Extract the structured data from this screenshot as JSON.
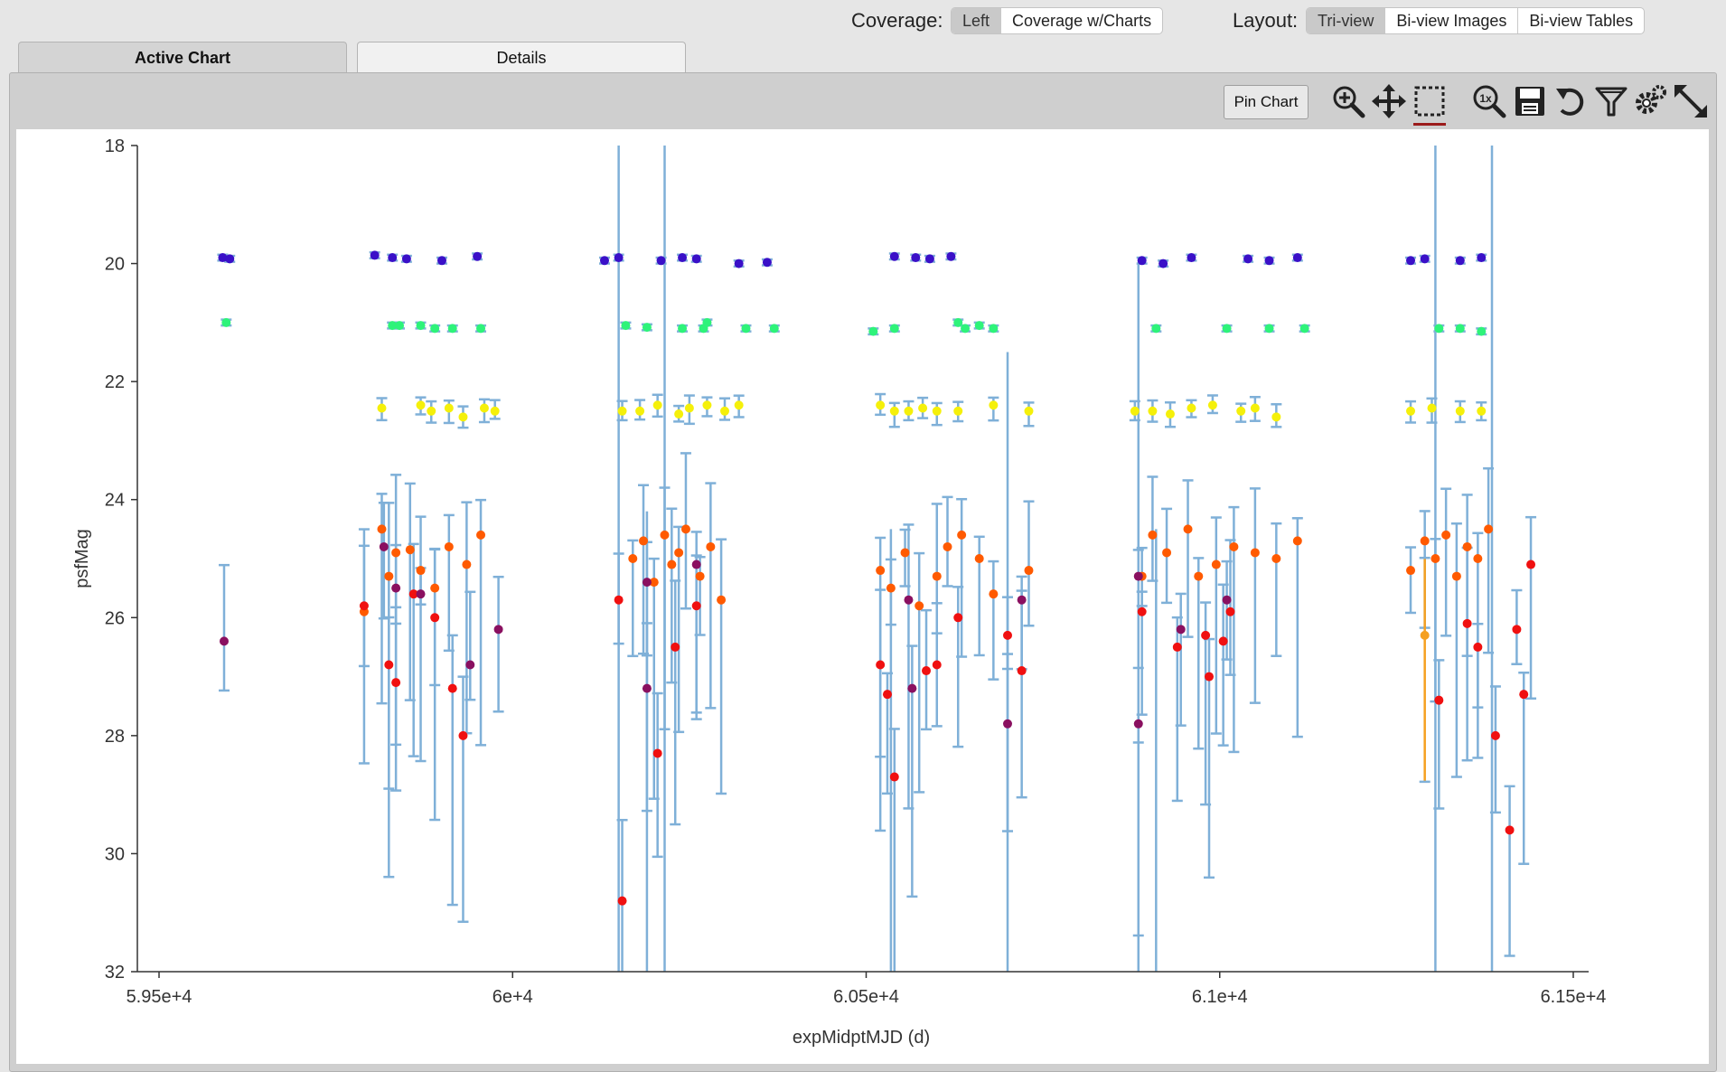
{
  "toolbar": {
    "coverage_label": "Coverage:",
    "coverage_options": [
      "Left",
      "Coverage w/Charts"
    ],
    "coverage_selected": "Left",
    "layout_label": "Layout:",
    "layout_options": [
      "Tri-view",
      "Bi-view Images",
      "Bi-view Tables"
    ],
    "layout_selected": "Tri-view"
  },
  "tabs": [
    {
      "label": "Active Chart",
      "active": true
    },
    {
      "label": "Details",
      "active": false
    }
  ],
  "chart_toolbar": {
    "pin_label": "Pin Chart",
    "icons": [
      "zoom-in-icon",
      "pan-icon",
      "select-box-icon",
      "zoom-reset-icon",
      "save-icon",
      "restore-icon",
      "filter-icon",
      "settings-icon",
      "expand-icon"
    ],
    "selected_icon": "select-box-icon"
  },
  "chart_data": {
    "type": "scatter",
    "title": "",
    "xlabel": "expMidptMJD (d)",
    "ylabel": "psfMag",
    "xlim": [
      59440,
      61500
    ],
    "ylim": [
      32,
      18
    ],
    "y_reversed": true,
    "xticks": [
      59500,
      60000,
      60500,
      61000,
      61500
    ],
    "xtick_labels": [
      "5.95e+4",
      "6e+4",
      "6.05e+4",
      "6.1e+4",
      "6.15e+4"
    ],
    "yticks": [
      18,
      20,
      22,
      24,
      26,
      28,
      30,
      32
    ],
    "ytick_labels": [
      "18",
      "20",
      "22",
      "24",
      "26",
      "28",
      "30",
      "32"
    ],
    "grid": false,
    "error_bar_color": "#7fb0d8",
    "series": [
      {
        "color": "#3a10c8",
        "points": [
          [
            59590,
            19.9
          ],
          [
            59600,
            19.92
          ],
          [
            59805,
            19.86
          ],
          [
            59830,
            19.9
          ],
          [
            59850,
            19.92
          ],
          [
            59900,
            19.95
          ],
          [
            59950,
            19.88
          ],
          [
            60130,
            19.95
          ],
          [
            60150,
            19.9
          ],
          [
            60210,
            19.95
          ],
          [
            60240,
            19.9
          ],
          [
            60260,
            19.92
          ],
          [
            60320,
            20.0
          ],
          [
            60360,
            19.98
          ],
          [
            60540,
            19.88
          ],
          [
            60570,
            19.9
          ],
          [
            60590,
            19.92
          ],
          [
            60620,
            19.88
          ],
          [
            60890,
            19.95
          ],
          [
            60920,
            20.0
          ],
          [
            60960,
            19.9
          ],
          [
            61040,
            19.92
          ],
          [
            61070,
            19.95
          ],
          [
            61110,
            19.9
          ],
          [
            61270,
            19.95
          ],
          [
            61290,
            19.92
          ],
          [
            61340,
            19.95
          ],
          [
            61370,
            19.9
          ]
        ]
      },
      {
        "color": "#2ef37a",
        "points": [
          [
            59595,
            21.0
          ],
          [
            59830,
            21.05
          ],
          [
            59840,
            21.05
          ],
          [
            59870,
            21.05
          ],
          [
            59890,
            21.1
          ],
          [
            59915,
            21.1
          ],
          [
            59955,
            21.1
          ],
          [
            60160,
            21.05
          ],
          [
            60190,
            21.08
          ],
          [
            60240,
            21.1
          ],
          [
            60275,
            21.0
          ],
          [
            60270,
            21.1
          ],
          [
            60330,
            21.1
          ],
          [
            60370,
            21.1
          ],
          [
            60510,
            21.15
          ],
          [
            60540,
            21.1
          ],
          [
            60630,
            21.0
          ],
          [
            60640,
            21.1
          ],
          [
            60660,
            21.05
          ],
          [
            60680,
            21.1
          ],
          [
            60910,
            21.1
          ],
          [
            61010,
            21.1
          ],
          [
            61070,
            21.1
          ],
          [
            61120,
            21.1
          ],
          [
            61310,
            21.1
          ],
          [
            61340,
            21.1
          ],
          [
            61370,
            21.15
          ]
        ]
      },
      {
        "color": "#f5f00a",
        "points": [
          [
            59815,
            22.45
          ],
          [
            59870,
            22.4
          ],
          [
            59885,
            22.5
          ],
          [
            59910,
            22.45
          ],
          [
            59930,
            22.6
          ],
          [
            59960,
            22.45
          ],
          [
            59975,
            22.5
          ],
          [
            60155,
            22.5
          ],
          [
            60180,
            22.5
          ],
          [
            60205,
            22.4
          ],
          [
            60235,
            22.55
          ],
          [
            60250,
            22.45
          ],
          [
            60275,
            22.4
          ],
          [
            60300,
            22.5
          ],
          [
            60320,
            22.4
          ],
          [
            60520,
            22.4
          ],
          [
            60540,
            22.5
          ],
          [
            60560,
            22.5
          ],
          [
            60580,
            22.45
          ],
          [
            60600,
            22.5
          ],
          [
            60630,
            22.5
          ],
          [
            60680,
            22.4
          ],
          [
            60730,
            22.5
          ],
          [
            60880,
            22.5
          ],
          [
            60905,
            22.5
          ],
          [
            60930,
            22.55
          ],
          [
            60960,
            22.45
          ],
          [
            60990,
            22.4
          ],
          [
            61030,
            22.5
          ],
          [
            61050,
            22.45
          ],
          [
            61080,
            22.6
          ],
          [
            61270,
            22.5
          ],
          [
            61300,
            22.45
          ],
          [
            61340,
            22.5
          ],
          [
            61370,
            22.5
          ]
        ]
      },
      {
        "color": "#ff5a00",
        "points": [
          [
            59790,
            25.9
          ],
          [
            59815,
            24.5
          ],
          [
            59825,
            25.3
          ],
          [
            59835,
            24.9
          ],
          [
            59855,
            24.85
          ],
          [
            59870,
            25.2
          ],
          [
            59890,
            25.5
          ],
          [
            59910,
            24.8
          ],
          [
            59935,
            25.1
          ],
          [
            59955,
            24.6
          ],
          [
            60170,
            25.0
          ],
          [
            60185,
            24.7
          ],
          [
            60200,
            25.4
          ],
          [
            60215,
            24.6
          ],
          [
            60225,
            25.1
          ],
          [
            60235,
            24.9
          ],
          [
            60245,
            24.5
          ],
          [
            60265,
            25.3
          ],
          [
            60280,
            24.8
          ],
          [
            60295,
            25.7
          ],
          [
            60520,
            25.2
          ],
          [
            60535,
            25.5
          ],
          [
            60555,
            24.9
          ],
          [
            60575,
            25.8
          ],
          [
            60600,
            25.3
          ],
          [
            60615,
            24.8
          ],
          [
            60635,
            24.6
          ],
          [
            60660,
            25.0
          ],
          [
            60680,
            25.6
          ],
          [
            60730,
            25.2
          ],
          [
            60890,
            25.3
          ],
          [
            60905,
            24.6
          ],
          [
            60925,
            24.9
          ],
          [
            60955,
            24.5
          ],
          [
            60970,
            25.3
          ],
          [
            60995,
            25.1
          ],
          [
            61020,
            24.8
          ],
          [
            61050,
            24.9
          ],
          [
            61080,
            25.0
          ],
          [
            61110,
            24.7
          ],
          [
            61270,
            25.2
          ],
          [
            61290,
            24.7
          ],
          [
            61305,
            25.0
          ],
          [
            61320,
            24.6
          ],
          [
            61335,
            25.3
          ],
          [
            61350,
            24.8
          ],
          [
            61365,
            25.0
          ],
          [
            61380,
            24.5
          ]
        ]
      },
      {
        "color": "#f01010",
        "points": [
          [
            59790,
            25.8
          ],
          [
            59825,
            26.8
          ],
          [
            59835,
            27.1
          ],
          [
            59860,
            25.6
          ],
          [
            59890,
            26.0
          ],
          [
            59915,
            27.2
          ],
          [
            59930,
            28.0
          ],
          [
            60150,
            25.7
          ],
          [
            60155,
            30.8
          ],
          [
            60205,
            28.3
          ],
          [
            60230,
            26.5
          ],
          [
            60260,
            25.8
          ],
          [
            60520,
            26.8
          ],
          [
            60530,
            27.3
          ],
          [
            60540,
            28.7
          ],
          [
            60585,
            26.9
          ],
          [
            60600,
            26.8
          ],
          [
            60630,
            26.0
          ],
          [
            60700,
            26.3
          ],
          [
            60720,
            26.9
          ],
          [
            60890,
            25.9
          ],
          [
            60940,
            26.5
          ],
          [
            60980,
            26.3
          ],
          [
            60985,
            27.0
          ],
          [
            61005,
            26.4
          ],
          [
            61015,
            25.9
          ],
          [
            61310,
            27.4
          ],
          [
            61350,
            26.1
          ],
          [
            61365,
            26.5
          ],
          [
            61390,
            28.0
          ],
          [
            61410,
            29.6
          ],
          [
            61420,
            26.2
          ],
          [
            61430,
            27.3
          ],
          [
            61440,
            25.1
          ]
        ]
      },
      {
        "color": "#8a1060",
        "points": [
          [
            59592,
            26.4
          ],
          [
            59818,
            24.8
          ],
          [
            59835,
            25.5
          ],
          [
            59870,
            25.6
          ],
          [
            59940,
            26.8
          ],
          [
            59980,
            26.2
          ],
          [
            60190,
            25.4
          ],
          [
            60190,
            27.2
          ],
          [
            60260,
            25.1
          ],
          [
            60560,
            25.7
          ],
          [
            60565,
            27.2
          ],
          [
            60700,
            27.8
          ],
          [
            60720,
            25.7
          ],
          [
            60885,
            25.3
          ],
          [
            60885,
            27.8
          ],
          [
            60945,
            26.2
          ],
          [
            61010,
            25.7
          ]
        ]
      },
      {
        "color": "#f5a020",
        "points": [
          [
            61290,
            26.3
          ]
        ]
      }
    ]
  }
}
